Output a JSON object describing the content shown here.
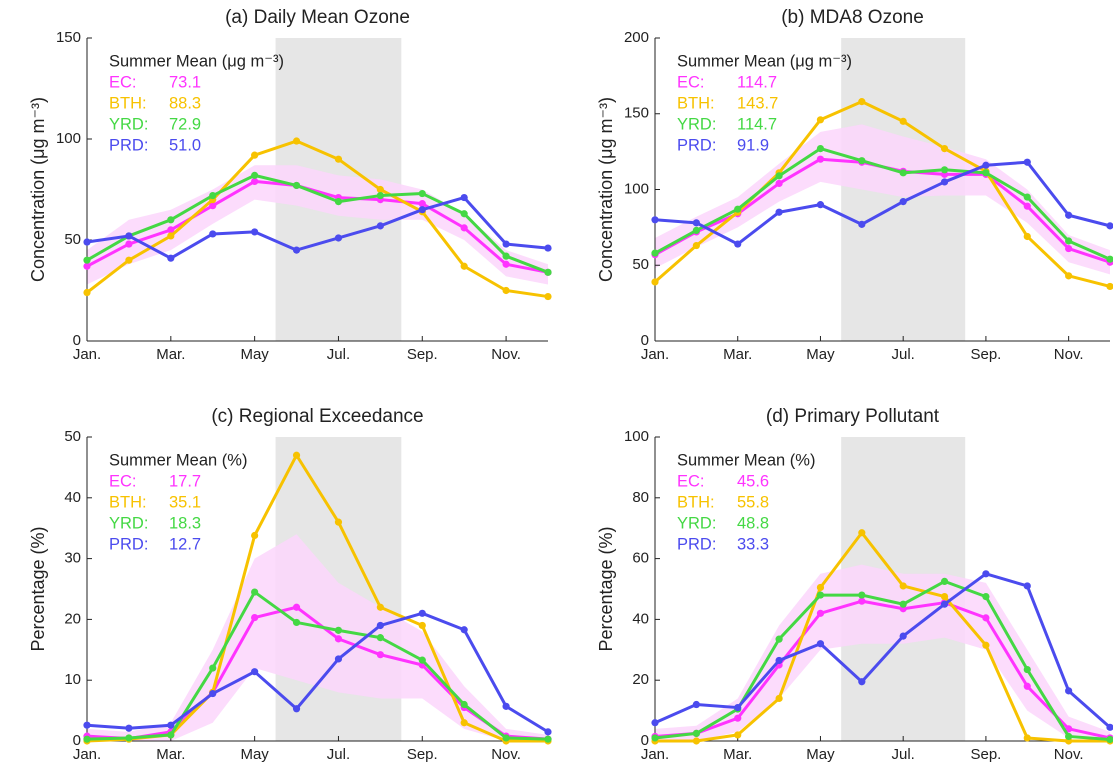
{
  "chart_data": [
    {
      "type": "line",
      "title": "(a) Daily Mean Ozone",
      "ylabel": "Concentration (μg m⁻³)",
      "categories": [
        "Jan.",
        null,
        "Mar.",
        null,
        "May",
        null,
        "Jul.",
        null,
        "Sep.",
        null,
        "Nov.",
        null
      ],
      "ylim": [
        0,
        150
      ],
      "yticks": [
        0,
        50,
        100,
        150
      ],
      "shaded_range": [
        5,
        7
      ],
      "shade_color": "#e6e6e6",
      "summary_title": "Summer Mean (μg m⁻³)",
      "band": {
        "color": "#fbd6fb",
        "lower": [
          28,
          38,
          45,
          58,
          70,
          67,
          62,
          60,
          60,
          50,
          32,
          28
        ],
        "upper": [
          45,
          60,
          65,
          75,
          87,
          87,
          82,
          80,
          75,
          63,
          45,
          38
        ]
      },
      "series": [
        {
          "name": "EC:",
          "color": "#ff33ff",
          "summer_mean": 73.1,
          "values": [
            37,
            48,
            55,
            67,
            79,
            77,
            71,
            70,
            68,
            56,
            38,
            34
          ]
        },
        {
          "name": "BTH:",
          "color": "#f7c200",
          "summer_mean": 88.3,
          "values": [
            24,
            40,
            52,
            70,
            92,
            99,
            90,
            75,
            64,
            37,
            25,
            22
          ]
        },
        {
          "name": "YRD:",
          "color": "#44d844",
          "summer_mean": 72.9,
          "values": [
            40,
            52,
            60,
            72,
            82,
            77,
            69,
            72,
            73,
            63,
            42,
            34
          ]
        },
        {
          "name": "PRD:",
          "color": "#4b4bee",
          "summer_mean": {
            "value": 51,
            "label": "51.0"
          },
          "values": [
            49,
            52,
            41,
            53,
            54,
            45,
            51,
            57,
            65,
            71,
            48,
            46
          ]
        }
      ]
    },
    {
      "type": "line",
      "title": "(b) MDA8 Ozone",
      "ylabel": "Concentration (μg m⁻³)",
      "categories": [
        "Jan.",
        null,
        "Mar.",
        null,
        "May",
        null,
        "Jul.",
        null,
        "Sep.",
        null,
        "Nov.",
        null
      ],
      "ylim": [
        0,
        200
      ],
      "yticks": [
        0,
        50,
        100,
        150,
        200
      ],
      "shaded_range": [
        5,
        7
      ],
      "shade_color": "#e6e6e6",
      "summary_title": "Summer Mean (μg m⁻³)",
      "band": {
        "color": "#fbd6fb",
        "lower": [
          48,
          62,
          75,
          92,
          105,
          100,
          95,
          96,
          96,
          78,
          52,
          44
        ],
        "upper": [
          68,
          82,
          95,
          117,
          138,
          143,
          135,
          128,
          120,
          100,
          70,
          60
        ]
      },
      "series": [
        {
          "name": "EC:",
          "color": "#ff33ff",
          "summer_mean": 114.7,
          "values": [
            57,
            72,
            84,
            104,
            120,
            118,
            112,
            110,
            110,
            89,
            61,
            52
          ]
        },
        {
          "name": "BTH:",
          "color": "#f7c200",
          "summer_mean": 143.7,
          "values": [
            39,
            63,
            85,
            111,
            146,
            158,
            145,
            127,
            112,
            69,
            43,
            36
          ]
        },
        {
          "name": "YRD:",
          "color": "#44d844",
          "summer_mean": 114.7,
          "values": [
            58,
            73,
            87,
            109,
            127,
            119,
            111,
            113,
            111,
            95,
            66,
            54
          ]
        },
        {
          "name": "PRD:",
          "color": "#4b4bee",
          "summer_mean": 91.9,
          "values": [
            80,
            78,
            64,
            85,
            90,
            77,
            92,
            105,
            116,
            118,
            83,
            76
          ]
        }
      ]
    },
    {
      "type": "line",
      "title": "(c) Regional Exceedance",
      "ylabel": "Percentage (%)",
      "categories": [
        "Jan.",
        null,
        "Mar.",
        null,
        "May",
        null,
        "Jul.",
        null,
        "Sep.",
        null,
        "Nov.",
        null
      ],
      "ylim": [
        0,
        50
      ],
      "yticks": [
        0,
        10,
        20,
        30,
        40,
        50
      ],
      "shaded_range": [
        5,
        7
      ],
      "shade_color": "#e6e6e6",
      "summary_title": "Summer Mean (%)",
      "band": {
        "color": "#fbd6fb",
        "lower": [
          0,
          0,
          0,
          3,
          12,
          10,
          8,
          7,
          7,
          2,
          0,
          0
        ],
        "upper": [
          2,
          1.5,
          3,
          15,
          30,
          34,
          26,
          22,
          18,
          9,
          2,
          1
        ]
      },
      "series": [
        {
          "name": "EC:",
          "color": "#ff33ff",
          "summer_mean": 17.7,
          "values": [
            0.8,
            0.4,
            1.5,
            8,
            20.3,
            22,
            16.8,
            14.2,
            12.5,
            5.5,
            0.8,
            0.3
          ]
        },
        {
          "name": "BTH:",
          "color": "#f7c200",
          "summer_mean": 35.1,
          "values": [
            0,
            0.3,
            1,
            8,
            33.8,
            47,
            36,
            22,
            19,
            3,
            0,
            0
          ]
        },
        {
          "name": "YRD:",
          "color": "#44d844",
          "summer_mean": 18.3,
          "values": [
            0.3,
            0.5,
            1,
            12,
            24.5,
            19.5,
            18.2,
            17,
            13.3,
            6,
            0.5,
            0.3
          ]
        },
        {
          "name": "PRD:",
          "color": "#4b4bee",
          "summer_mean": 12.7,
          "values": [
            2.6,
            2.1,
            2.6,
            7.8,
            11.4,
            5.3,
            13.5,
            19,
            21,
            18.3,
            5.7,
            1.5
          ]
        }
      ]
    },
    {
      "type": "line",
      "title": "(d) Primary Pollutant",
      "ylabel": "Percentage (%)",
      "categories": [
        "Jan.",
        null,
        "Mar.",
        null,
        "May",
        null,
        "Jul.",
        null,
        "Sep.",
        null,
        "Nov.",
        null
      ],
      "ylim": [
        0,
        100
      ],
      "yticks": [
        0,
        20,
        40,
        60,
        80,
        100
      ],
      "shaded_range": [
        5,
        7
      ],
      "shade_color": "#e6e6e6",
      "summary_title": "Summer Mean (%)",
      "band": {
        "color": "#fbd6fb",
        "lower": [
          0,
          0,
          3,
          14,
          30,
          32,
          32,
          34,
          30,
          10,
          1,
          0
        ],
        "upper": [
          4,
          5,
          14,
          38,
          55,
          58,
          55,
          55,
          52,
          30,
          8,
          3
        ]
      },
      "series": [
        {
          "name": "EC:",
          "color": "#ff33ff",
          "summer_mean": 45.6,
          "values": [
            1.5,
            2.5,
            7.5,
            25,
            42,
            46,
            43.5,
            45.5,
            40.5,
            18,
            4,
            1
          ]
        },
        {
          "name": "BTH:",
          "color": "#f7c200",
          "summer_mean": 55.8,
          "values": [
            0,
            0,
            2,
            14,
            50.5,
            68.5,
            51,
            47.5,
            31.5,
            1,
            0,
            0
          ]
        },
        {
          "name": "YRD:",
          "color": "#44d844",
          "summer_mean": 48.8,
          "values": [
            1,
            2.5,
            10.5,
            33.5,
            48,
            48,
            45,
            52.5,
            47.5,
            23.5,
            1.5,
            0.5
          ]
        },
        {
          "name": "PRD:",
          "color": "#4b4bee",
          "summer_mean": 33.3,
          "values": [
            6,
            12,
            11,
            26.5,
            32,
            19.5,
            34.5,
            45,
            55,
            51,
            16.5,
            4.5
          ]
        }
      ]
    }
  ]
}
